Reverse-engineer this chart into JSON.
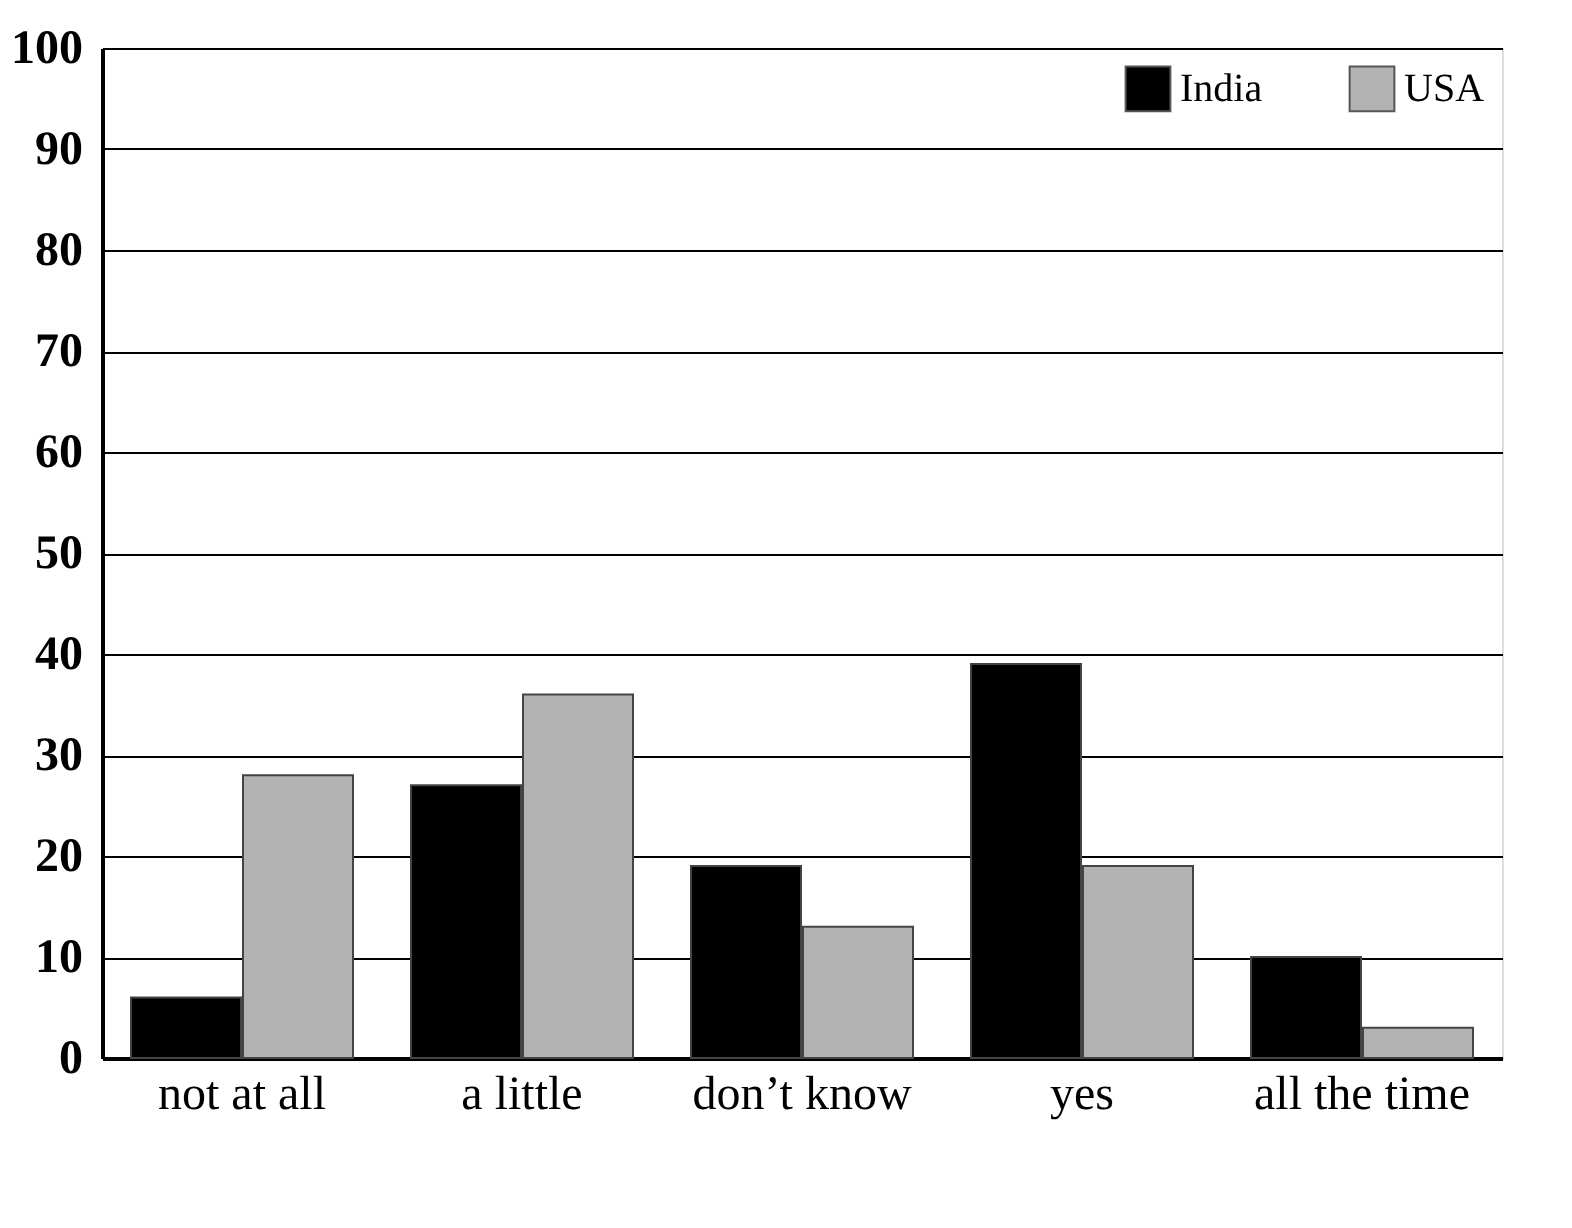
{
  "chart_data": {
    "type": "bar",
    "categories": [
      "not at all",
      "a little",
      "don’t know",
      "yes",
      "all the time"
    ],
    "series": [
      {
        "name": "India",
        "color": "#000000",
        "values": [
          6,
          27,
          19,
          39,
          10
        ]
      },
      {
        "name": "USA",
        "color": "#b3b3b3",
        "values": [
          28,
          36,
          13,
          19,
          3
        ]
      }
    ],
    "ylim": [
      0,
      100
    ],
    "yticks": [
      0,
      10,
      20,
      30,
      40,
      50,
      60,
      70,
      80,
      90,
      100
    ],
    "grid": "y",
    "legend": "top right"
  }
}
